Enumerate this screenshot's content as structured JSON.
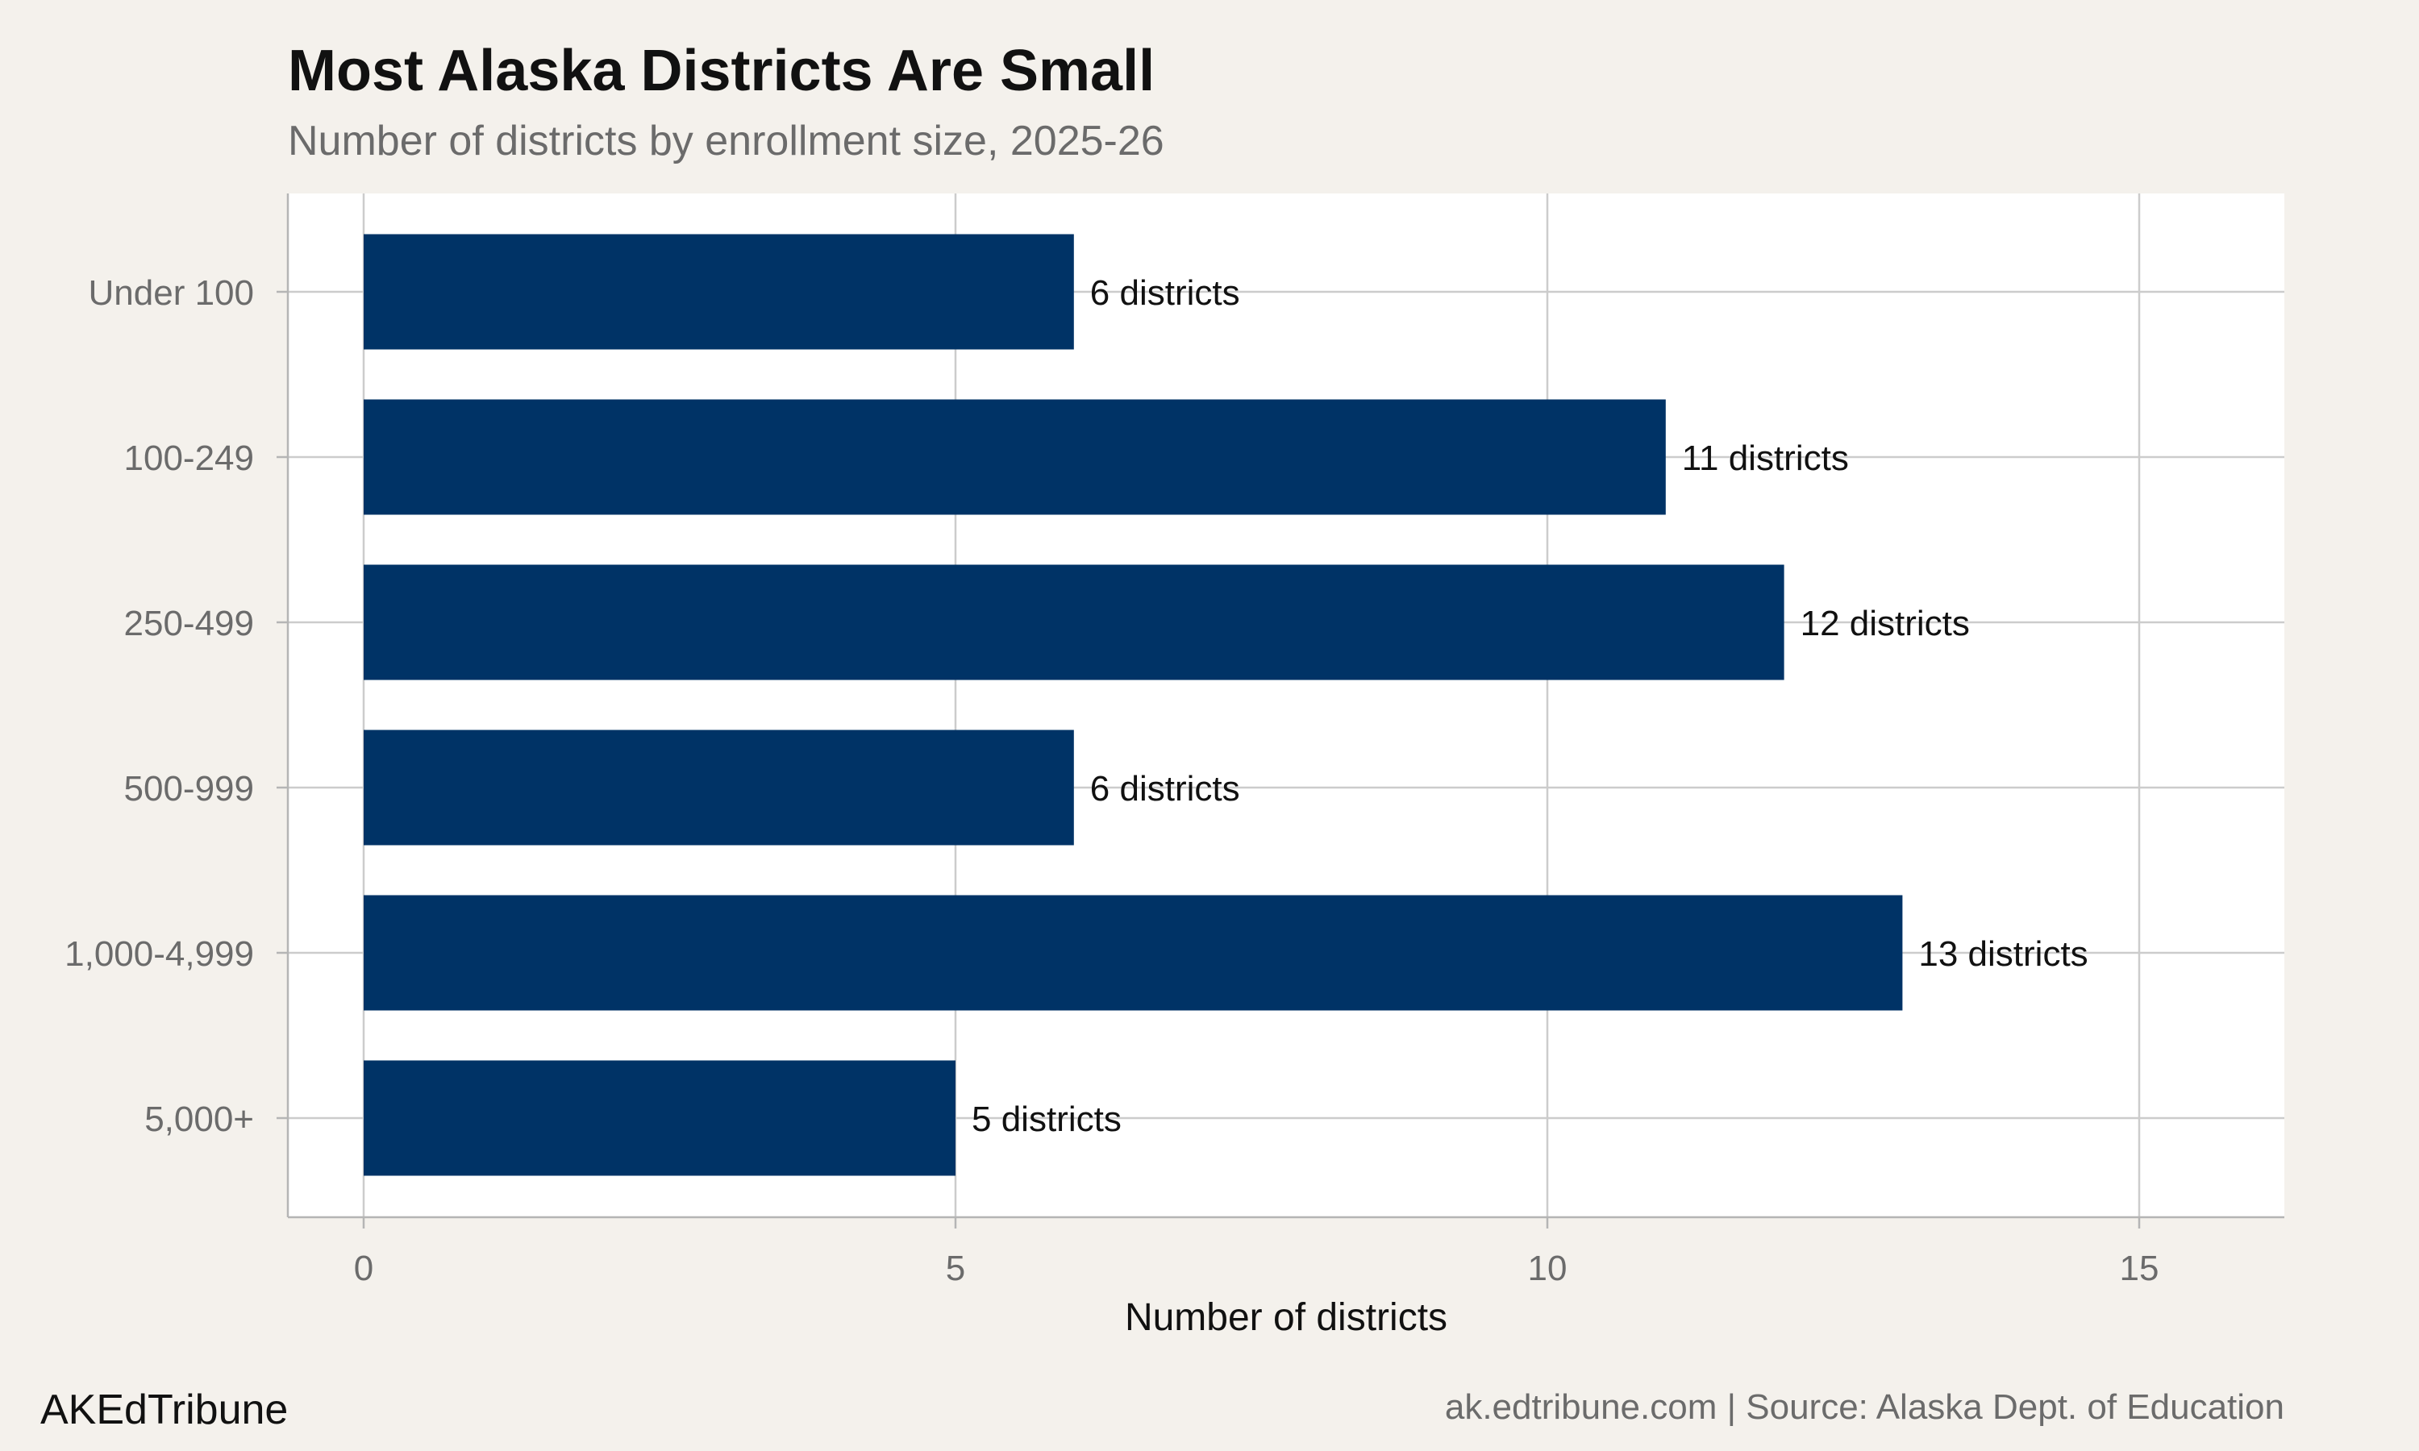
{
  "chart_data": {
    "type": "bar",
    "orientation": "horizontal",
    "title": "Most Alaska Districts Are Small",
    "subtitle": "Number of districts by enrollment size, 2025-26",
    "xlabel": "Number of districts",
    "ylabel": "",
    "categories": [
      "Under 100",
      "100-249",
      "250-499",
      "500-999",
      "1,000-4,999",
      "5,000+"
    ],
    "values": [
      6,
      11,
      12,
      6,
      13,
      5
    ],
    "data_labels": [
      "6 districts",
      "11 districts",
      "12 districts",
      "6 districts",
      "13 districts",
      "5 districts"
    ],
    "xlim": [
      0,
      16
    ],
    "xticks": [
      0,
      5,
      10,
      15
    ],
    "grid": true,
    "colors": {
      "bar": "#003366",
      "background": "#f4f1ec",
      "panel": "#ffffff",
      "grid": "#cccccc"
    }
  },
  "footer": {
    "brand": "AKEdTribune",
    "source": "ak.edtribune.com | Source: Alaska Dept. of Education"
  }
}
